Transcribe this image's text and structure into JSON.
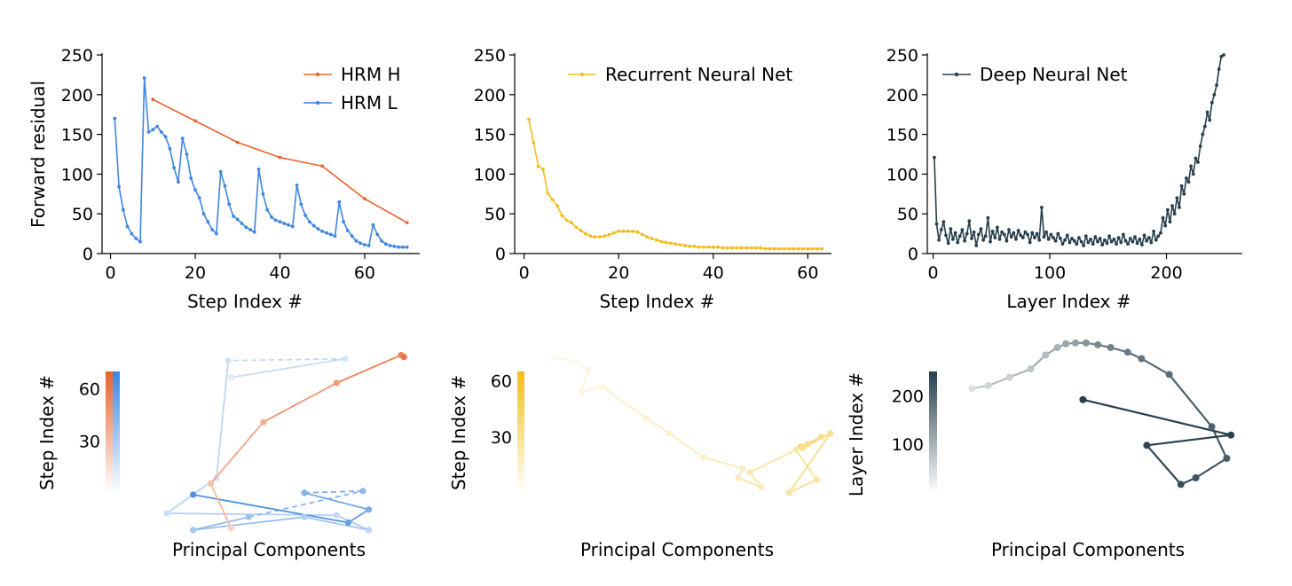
{
  "colors": {
    "hrm_h": "#e8622b",
    "hrm_l": "#3f86e0",
    "rnn": "#f2bd1e",
    "dnn": "#263f4c",
    "axis": "#000000"
  },
  "chart_data": [
    {
      "id": "hrm-residual",
      "type": "line",
      "xlabel": "Step Index #",
      "ylabel": "Forward residual",
      "xlim": [
        -2,
        73
      ],
      "ylim": [
        0,
        250
      ],
      "xticks": [
        0,
        20,
        40,
        60
      ],
      "yticks": [
        0,
        50,
        100,
        150,
        200,
        250
      ],
      "legend_position": "top-right",
      "series": [
        {
          "name": "HRM H",
          "color_key": "hrm_h",
          "x": [
            10,
            20,
            30,
            40,
            50,
            60,
            70
          ],
          "y": [
            194,
            167,
            140,
            121,
            110,
            69,
            39
          ]
        },
        {
          "name": "HRM L",
          "color_key": "hrm_l",
          "x": [
            1,
            2,
            3,
            4,
            5,
            6,
            7,
            8,
            9,
            10,
            11,
            12,
            13,
            14,
            15,
            16,
            17,
            18,
            19,
            20,
            21,
            22,
            23,
            24,
            25,
            26,
            27,
            28,
            29,
            30,
            31,
            32,
            33,
            34,
            35,
            36,
            37,
            38,
            39,
            40,
            41,
            42,
            43,
            44,
            45,
            46,
            47,
            48,
            49,
            50,
            51,
            52,
            53,
            54,
            55,
            56,
            57,
            58,
            59,
            60,
            61,
            62,
            63,
            64,
            65,
            66,
            67,
            68,
            69,
            70
          ],
          "y": [
            170,
            84,
            55,
            34,
            25,
            19,
            15,
            221,
            153,
            156,
            160,
            153,
            147,
            132,
            108,
            90,
            145,
            125,
            95,
            80,
            70,
            50,
            40,
            30,
            25,
            103,
            85,
            62,
            47,
            43,
            38,
            33,
            30,
            27,
            106,
            75,
            55,
            46,
            42,
            40,
            38,
            36,
            34,
            86,
            62,
            48,
            40,
            35,
            31,
            28,
            26,
            24,
            22,
            65,
            40,
            29,
            22,
            16,
            13,
            11,
            10,
            36,
            24,
            16,
            12,
            10,
            9,
            8,
            8,
            8
          ]
        }
      ]
    },
    {
      "id": "rnn-residual",
      "type": "line",
      "xlabel": "Step Index #",
      "ylabel": "",
      "xlim": [
        -2,
        65
      ],
      "ylim": [
        0,
        250
      ],
      "xticks": [
        0,
        20,
        40,
        60
      ],
      "yticks": [
        0,
        50,
        100,
        150,
        200,
        250
      ],
      "legend_position": "top-left",
      "series": [
        {
          "name": "Recurrent Neural Net",
          "color_key": "rnn",
          "x": [
            1,
            2,
            3,
            4,
            5,
            6,
            7,
            8,
            9,
            10,
            11,
            12,
            13,
            14,
            15,
            16,
            17,
            18,
            19,
            20,
            21,
            22,
            23,
            24,
            25,
            26,
            27,
            28,
            29,
            30,
            31,
            32,
            33,
            34,
            35,
            36,
            37,
            38,
            39,
            40,
            41,
            42,
            43,
            44,
            45,
            46,
            47,
            48,
            49,
            50,
            51,
            52,
            53,
            54,
            55,
            56,
            57,
            58,
            59,
            60,
            61,
            62,
            63
          ],
          "y": [
            169,
            140,
            110,
            106,
            76,
            68,
            60,
            48,
            42,
            39,
            33,
            29,
            25,
            22,
            21,
            21,
            22,
            24,
            26,
            28,
            28,
            28,
            28,
            27,
            24,
            21,
            19,
            17,
            15,
            14,
            13,
            12,
            11,
            10,
            9,
            9,
            8,
            8,
            8,
            8,
            8,
            7,
            7,
            7,
            7,
            7,
            7,
            7,
            7,
            7,
            6,
            6,
            6,
            6,
            6,
            6,
            6,
            6,
            6,
            6,
            6,
            6,
            6
          ]
        }
      ]
    },
    {
      "id": "dnn-residual",
      "type": "line",
      "xlabel": "Layer Index #",
      "ylabel": "",
      "xlim": [
        -5,
        265
      ],
      "ylim": [
        0,
        250
      ],
      "xticks": [
        0,
        100,
        200
      ],
      "yticks": [
        0,
        50,
        100,
        150,
        200,
        250
      ],
      "legend_position": "top-left",
      "series": [
        {
          "name": "Deep Neural Net",
          "color_key": "dnn",
          "x": [
            1,
            3,
            5,
            7,
            9,
            11,
            13,
            15,
            17,
            19,
            21,
            23,
            25,
            27,
            29,
            31,
            33,
            35,
            37,
            39,
            41,
            43,
            45,
            47,
            49,
            51,
            53,
            55,
            57,
            59,
            61,
            63,
            65,
            67,
            69,
            71,
            73,
            75,
            77,
            79,
            81,
            83,
            85,
            87,
            89,
            91,
            93,
            95,
            97,
            99,
            101,
            103,
            105,
            107,
            109,
            111,
            113,
            115,
            117,
            119,
            121,
            123,
            125,
            127,
            129,
            131,
            133,
            135,
            137,
            139,
            141,
            143,
            145,
            147,
            149,
            151,
            153,
            155,
            157,
            159,
            161,
            163,
            165,
            167,
            169,
            171,
            173,
            175,
            177,
            179,
            181,
            183,
            185,
            187,
            189,
            191,
            193,
            195,
            197,
            199,
            201,
            203,
            205,
            207,
            209,
            211,
            213,
            215,
            217,
            219,
            221,
            223,
            225,
            227,
            229,
            231,
            233,
            235,
            237,
            239,
            241,
            243,
            245,
            247,
            249
          ],
          "y": [
            121,
            37,
            17,
            30,
            40,
            23,
            13,
            31,
            18,
            26,
            14,
            22,
            30,
            16,
            25,
            41,
            19,
            27,
            10,
            24,
            31,
            17,
            22,
            45,
            15,
            28,
            20,
            33,
            18,
            27,
            24,
            16,
            30,
            21,
            26,
            18,
            29,
            23,
            20,
            27,
            24,
            14,
            26,
            20,
            25,
            17,
            58,
            21,
            27,
            18,
            24,
            20,
            16,
            25,
            19,
            12,
            17,
            23,
            14,
            19,
            16,
            12,
            20,
            15,
            10,
            22,
            14,
            18,
            12,
            21,
            15,
            19,
            11,
            17,
            13,
            22,
            15,
            18,
            12,
            20,
            14,
            24,
            16,
            12,
            19,
            15,
            21,
            13,
            18,
            11,
            23,
            16,
            20,
            14,
            28,
            17,
            22,
            26,
            45,
            35,
            55,
            40,
            60,
            50,
            70,
            58,
            85,
            75,
            95,
            90,
            110,
            100,
            120,
            115,
            135,
            150,
            160,
            178,
            168,
            190,
            200,
            212,
            232,
            248,
            250
          ]
        }
      ]
    },
    {
      "id": "hrm-pca",
      "type": "scatter",
      "xlabel": "Principal Components",
      "colorbar_label": "Step Index #",
      "colorbar_ticks": [
        30,
        60
      ],
      "colorbar_range": [
        0,
        70
      ],
      "colorbar_colors": [
        "hrm_h",
        "hrm_l"
      ],
      "series": [
        {
          "name": "HRM L",
          "color_key": "hrm_l",
          "x": [
            35,
            74,
            34,
            30,
            13,
            71,
            82,
            60,
            22,
            41,
            80,
            60,
            82,
            75,
            22
          ],
          "y": [
            83,
            93,
            92,
            29,
            10,
            9,
            1,
            8,
            1,
            8,
            22,
            21,
            12,
            5,
            20
          ],
          "t": [
            1,
            4,
            7,
            8,
            10,
            14,
            17,
            22,
            26,
            30,
            35,
            40,
            44,
            54,
            62
          ]
        },
        {
          "name": "HRM H",
          "color_key": "hrm_h",
          "x": [
            35,
            28,
            46,
            71,
            93,
            94
          ],
          "y": [
            2,
            26,
            59,
            80,
            95,
            94
          ],
          "t": [
            10,
            20,
            30,
            40,
            50,
            60
          ]
        }
      ]
    },
    {
      "id": "rnn-pca",
      "type": "scatter",
      "xlabel": "Principal Components",
      "colorbar_label": "Step Index #",
      "colorbar_ticks": [
        30,
        60
      ],
      "colorbar_range": [
        0,
        65
      ],
      "colorbar_colors": [
        "rnn"
      ],
      "series": [
        {
          "name": "Recurrent Neural Net",
          "color_key": "rnn",
          "x": [
            10,
            20,
            25,
            22,
            31,
            50,
            60,
            75,
            92,
            90,
            100,
            95,
            115,
            124,
            112,
            130,
            118,
            126,
            117,
            120
          ],
          "y": [
            95,
            92,
            88,
            76,
            79,
            62,
            54,
            41,
            35,
            30,
            25,
            33,
            45,
            29,
            22,
            54,
            46,
            52,
            47,
            48
          ],
          "t": [
            1,
            3,
            5,
            8,
            10,
            14,
            18,
            22,
            26,
            28,
            32,
            36,
            40,
            44,
            48,
            52,
            56,
            58,
            60,
            63
          ]
        }
      ]
    },
    {
      "id": "dnn-pca",
      "type": "scatter",
      "xlabel": "Principal Components",
      "colorbar_label": "Layer Index #",
      "colorbar_ticks": [
        100,
        200
      ],
      "colorbar_range": [
        0,
        250
      ],
      "colorbar_colors": [
        "dnn"
      ],
      "series": [
        {
          "name": "Deep Neural Net",
          "color_key": "dnn",
          "x": [
            23,
            38,
            58,
            78,
            92,
            103,
            111,
            120,
            130,
            141,
            153,
            169,
            182,
            208,
            248,
            262,
            233,
            219,
            187,
            266,
            127
          ],
          "y": [
            156,
            159,
            168,
            177,
            192,
            200,
            204,
            205,
            205,
            203,
            200,
            195,
            188,
            171,
            115,
            81,
            60,
            53,
            95,
            106,
            144
          ],
          "t": [
            5,
            18,
            30,
            45,
            60,
            75,
            90,
            105,
            120,
            135,
            150,
            160,
            170,
            180,
            195,
            205,
            215,
            225,
            235,
            245,
            250
          ]
        }
      ]
    }
  ]
}
